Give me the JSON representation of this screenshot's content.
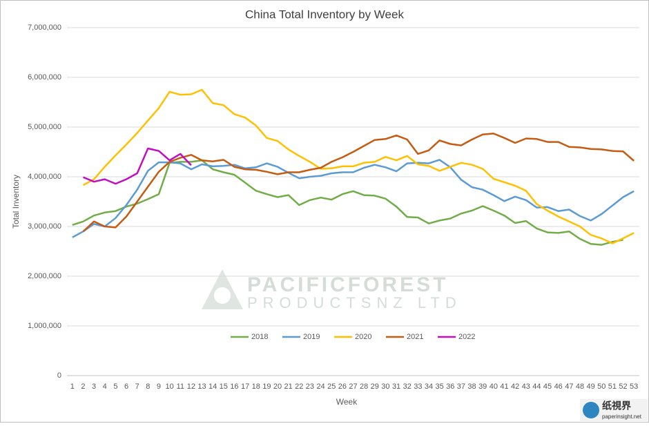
{
  "chart_data": {
    "type": "line",
    "title": "China Total Inventory by Week",
    "x_label": "Week",
    "y_label": "Total Inventory",
    "categories": [
      1,
      2,
      3,
      4,
      5,
      6,
      7,
      8,
      9,
      10,
      11,
      12,
      13,
      14,
      15,
      16,
      17,
      18,
      19,
      20,
      21,
      22,
      23,
      24,
      25,
      26,
      27,
      28,
      29,
      30,
      31,
      32,
      33,
      34,
      35,
      36,
      37,
      38,
      39,
      40,
      41,
      42,
      43,
      44,
      45,
      46,
      47,
      48,
      49,
      50,
      51,
      52,
      53
    ],
    "ylim": [
      0,
      7000000
    ],
    "yticks": [
      0,
      {
        "value": 1000000,
        "label": "1,000,000"
      },
      {
        "value": 2000000,
        "label": "2,000,000"
      },
      {
        "value": 3000000,
        "label": "3,000,000"
      },
      {
        "value": 4000000,
        "label": "4,000,000"
      },
      {
        "value": 5000000,
        "label": "5,000,000"
      },
      {
        "value": 6000000,
        "label": "6,000,000"
      },
      {
        "value": 7000000,
        "label": "7,000,000"
      }
    ],
    "grid": true,
    "legend": "bottom",
    "series": [
      {
        "name": "2018",
        "color": "#70ad47",
        "values": [
          3030000,
          3100000,
          3220000,
          3280000,
          3310000,
          3400000,
          3460000,
          3550000,
          3650000,
          4280000,
          4300000,
          4300000,
          4330000,
          4150000,
          4090000,
          4040000,
          3880000,
          3720000,
          3650000,
          3590000,
          3630000,
          3430000,
          3530000,
          3580000,
          3540000,
          3650000,
          3710000,
          3630000,
          3620000,
          3560000,
          3400000,
          3190000,
          3180000,
          3060000,
          3120000,
          3160000,
          3260000,
          3320000,
          3410000,
          3320000,
          3220000,
          3070000,
          3110000,
          2960000,
          2880000,
          2870000,
          2900000,
          2750000,
          2650000,
          2630000,
          2690000,
          2730000,
          null
        ]
      },
      {
        "name": "2019",
        "color": "#5b9bd5",
        "values": [
          2780000,
          2900000,
          3050000,
          3000000,
          3170000,
          3430000,
          3740000,
          4120000,
          4290000,
          4290000,
          4270000,
          4150000,
          4250000,
          4210000,
          4220000,
          4240000,
          4170000,
          4190000,
          4270000,
          4200000,
          4080000,
          3970000,
          4000000,
          4020000,
          4070000,
          4090000,
          4090000,
          4180000,
          4240000,
          4190000,
          4110000,
          4270000,
          4280000,
          4270000,
          4340000,
          4190000,
          3940000,
          3790000,
          3740000,
          3630000,
          3510000,
          3600000,
          3530000,
          3380000,
          3390000,
          3310000,
          3340000,
          3210000,
          3120000,
          3250000,
          3420000,
          3590000,
          3710000
        ]
      },
      {
        "name": "2020",
        "color": "#ffc000",
        "values": [
          null,
          3830000,
          3950000,
          4200000,
          4430000,
          4650000,
          4880000,
          5130000,
          5380000,
          5710000,
          5650000,
          5660000,
          5750000,
          5480000,
          5440000,
          5260000,
          5190000,
          5030000,
          4780000,
          4720000,
          4550000,
          4420000,
          4300000,
          4160000,
          4170000,
          4210000,
          4210000,
          4280000,
          4300000,
          4400000,
          4330000,
          4420000,
          4250000,
          4220000,
          4120000,
          4200000,
          4280000,
          4240000,
          4160000,
          3960000,
          3890000,
          3820000,
          3720000,
          3450000,
          3320000,
          3200000,
          3100000,
          3000000,
          2830000,
          2760000,
          2660000,
          2760000,
          2870000
        ]
      },
      {
        "name": "2021",
        "color": "#c55a11",
        "values": [
          null,
          2900000,
          3100000,
          3000000,
          2980000,
          3200000,
          3500000,
          3800000,
          4100000,
          4300000,
          4380000,
          4440000,
          4330000,
          4310000,
          4340000,
          4200000,
          4150000,
          4140000,
          4100000,
          4050000,
          4090000,
          4090000,
          4140000,
          4180000,
          4300000,
          4390000,
          4500000,
          4620000,
          4740000,
          4760000,
          4830000,
          4750000,
          4460000,
          4530000,
          4730000,
          4660000,
          4630000,
          4750000,
          4850000,
          4870000,
          4780000,
          4680000,
          4770000,
          4760000,
          4700000,
          4700000,
          4600000,
          4590000,
          4560000,
          4550000,
          4520000,
          4510000,
          4320000
        ]
      },
      {
        "name": "2022",
        "color": "#c00ec0",
        "values": [
          null,
          3990000,
          3900000,
          3950000,
          3860000,
          3950000,
          4070000,
          4570000,
          4520000,
          4330000,
          4460000,
          4230000,
          null,
          null,
          null,
          null,
          null,
          null,
          null,
          null,
          null,
          null,
          null,
          null,
          null,
          null,
          null,
          null,
          null,
          null,
          null,
          null,
          null,
          null,
          null,
          null,
          null,
          null,
          null,
          null,
          null,
          null,
          null,
          null,
          null,
          null,
          null,
          null,
          null,
          null,
          null,
          null,
          null
        ]
      }
    ]
  },
  "watermark": {
    "line1": "PACIFICFOREST",
    "line2": "PRODUCTSNZ LTD",
    "site_name": "纸視界",
    "site_url": "paperinsight.net"
  }
}
